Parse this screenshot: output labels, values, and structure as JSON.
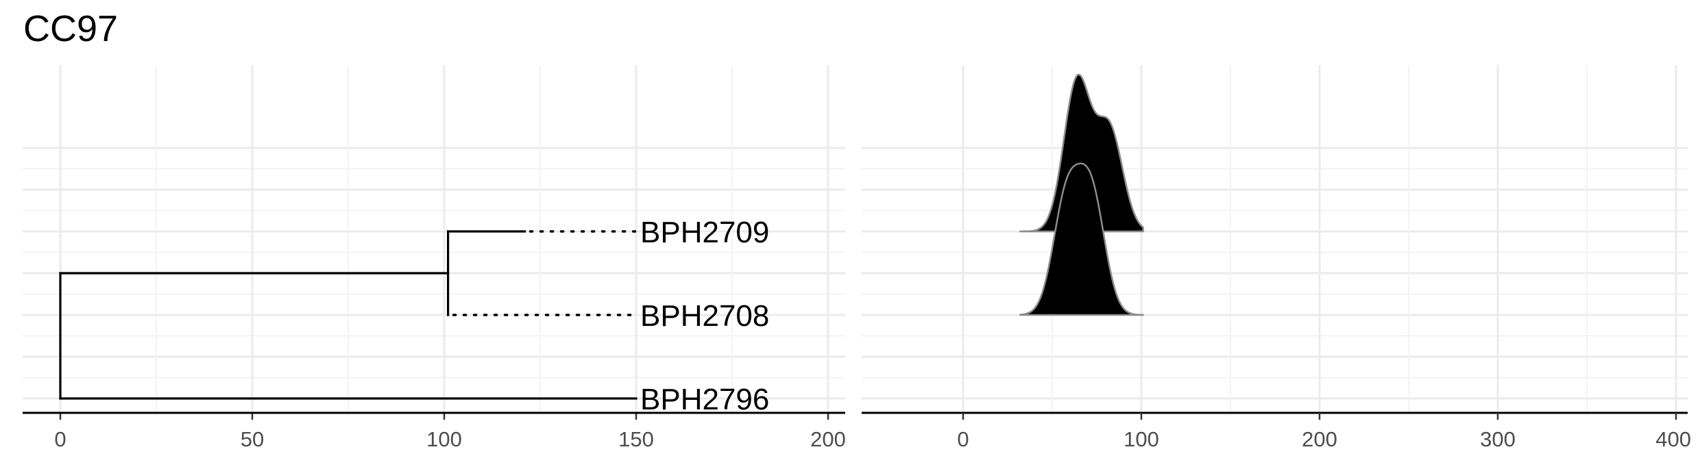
{
  "title": "CC97",
  "chart_data": [
    {
      "type": "tree",
      "x_ticks": [
        0,
        50,
        100,
        150,
        200
      ],
      "xlim": [
        -5,
        205
      ],
      "tips": [
        {
          "label": "BPH2709",
          "y": 5,
          "branch_end": 121,
          "dotted_to": 150
        },
        {
          "label": "BPH2708",
          "y": 3,
          "branch_end": 101,
          "dotted_to": 150
        },
        {
          "label": "BPH2796",
          "y": 1,
          "branch_end": 150,
          "dotted_to": 150
        }
      ],
      "internal_nodes": [
        {
          "x": 101,
          "y_range": [
            3,
            5
          ]
        },
        {
          "x": 0,
          "y_range": [
            1,
            4
          ]
        }
      ],
      "edges": [
        {
          "from": [
            0,
            4
          ],
          "to": [
            101,
            4
          ]
        }
      ],
      "grid": true
    },
    {
      "type": "ridgeline",
      "x_ticks": [
        0,
        100,
        200,
        300,
        400
      ],
      "xlim": [
        -57,
        402
      ],
      "ridges": [
        {
          "tip": "BPH2709",
          "baseline_y": 5,
          "x_range": [
            32,
            101
          ],
          "peaks": [
            {
              "x": 64,
              "height": 3.6
            },
            {
              "x": 82,
              "height": 2.45
            }
          ]
        },
        {
          "tip": "BPH2708",
          "baseline_y": 3,
          "x_range": [
            32,
            101
          ],
          "peaks": [
            {
              "x": 58,
              "height": 2.75
            },
            {
              "x": 72,
              "height": 2.85
            }
          ]
        }
      ],
      "grid": true
    }
  ]
}
